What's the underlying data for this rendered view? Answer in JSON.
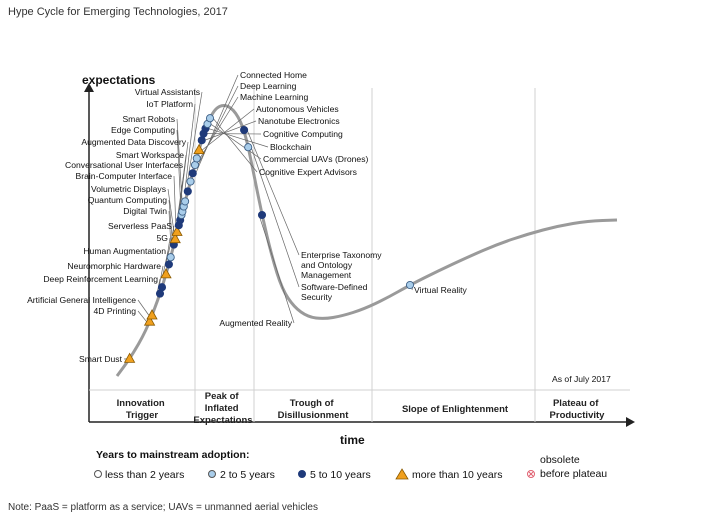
{
  "page": {
    "title": "Hype Cycle for Emerging Technologies, 2017",
    "note": "Note: PaaS = platform as a service; UAVs = unmanned aerial vehicles"
  },
  "chart_data": {
    "type": "hype-cycle",
    "title": "Hype Cycle for Emerging Technologies, 2017",
    "ylabel": "expectations",
    "xlabel": "time",
    "as_of": "As of July 2017",
    "phases": [
      [
        "Innovation",
        "Trigger"
      ],
      [
        "Peak of",
        "Inflated",
        "Expectations"
      ],
      [
        "Trough of",
        "Disillusionment"
      ],
      [
        "Slope of Enlightenment"
      ],
      [
        "Plateau of",
        "Productivity"
      ]
    ],
    "legend": {
      "title": "Years to mainstream adoption:",
      "items": [
        {
          "key": "lt2",
          "label": "less than 2 years"
        },
        {
          "key": "2to5",
          "label": "2 to 5 years"
        },
        {
          "key": "5to10",
          "label": "5 to 10 years"
        },
        {
          "key": "gt10",
          "label": "more than 10 years"
        },
        {
          "key": "obsolete",
          "label": [
            "obsolete",
            "before plateau"
          ]
        }
      ]
    },
    "colors": {
      "curve": "#9a9a9a",
      "lt2": "#ffffff",
      "2to5": "#a9cdea",
      "5to10": "#1f3a7a",
      "gt10": "#f0a01e",
      "obsolete": "#e06070",
      "divider": "#d0d0d0"
    },
    "technologies": [
      {
        "name": "Smart Dust",
        "category": "gt10",
        "pos": 0.9
      },
      {
        "name": "4D Printing",
        "category": "gt10",
        "pos": 2.3
      },
      {
        "name": "Artificial General Intelligence",
        "category": "gt10",
        "pos": 2.5
      },
      {
        "name": "Deep Reinforcement Learning",
        "category": "5to10",
        "pos": 3.2
      },
      {
        "name": "Neuromorphic Hardware",
        "category": "5to10",
        "pos": 3.4
      },
      {
        "name": "Human Augmentation",
        "category": "gt10",
        "pos": 3.8
      },
      {
        "name": "5G",
        "category": "5to10",
        "pos": 4.1
      },
      {
        "name": "Serverless PaaS",
        "category": "2to5",
        "pos": 4.3
      },
      {
        "name": "Digital Twin",
        "category": "5to10",
        "pos": 4.65
      },
      {
        "name": "Quantum Computing",
        "category": "gt10",
        "pos": 4.8
      },
      {
        "name": "Volumetric Displays",
        "category": "gt10",
        "pos": 5.0
      },
      {
        "name": "Brain-Computer Interface",
        "category": "5to10",
        "pos": 5.2
      },
      {
        "name": "Conversational User Interfaces",
        "category": "5to10",
        "pos": 5.35
      },
      {
        "name": "Smart Workspace",
        "category": "2to5",
        "pos": 5.5
      },
      {
        "name": "Augmented Data Discovery",
        "category": "2to5",
        "pos": 5.6
      },
      {
        "name": "Edge Computing",
        "category": "2to5",
        "pos": 5.75
      },
      {
        "name": "Smart Robots",
        "category": "2to5",
        "pos": 5.9
      },
      {
        "name": "IoT Platform",
        "category": "5to10",
        "pos": 6.2
      },
      {
        "name": "Virtual Assistants",
        "category": "2to5",
        "pos": 6.5
      },
      {
        "name": "Connected Home",
        "category": "5to10",
        "pos": 6.75
      },
      {
        "name": "Deep Learning",
        "category": "2to5",
        "pos": 7.0
      },
      {
        "name": "Machine Learning",
        "category": "2to5",
        "pos": 7.2
      },
      {
        "name": "Autonomous Vehicles",
        "category": "gt10",
        "pos": 7.45
      },
      {
        "name": "Nanotube Electronics",
        "category": "5to10",
        "pos": 7.75
      },
      {
        "name": "Cognitive Computing",
        "category": "5to10",
        "pos": 7.95
      },
      {
        "name": "Blockchain",
        "category": "5to10",
        "pos": 8.15
      },
      {
        "name": "Commercial UAVs (Drones)",
        "category": "2to5",
        "pos": 8.35
      },
      {
        "name": "Cognitive Expert Advisors",
        "category": "2to5",
        "pos": 8.6
      },
      {
        "name": "Enterprise Taxonomy and Ontology Management",
        "category": "5to10",
        "pos": 11.9
      },
      {
        "name": "Software-Defined Security",
        "category": "2to5",
        "pos": 12.4
      },
      {
        "name": "Augmented Reality",
        "category": "5to10",
        "pos": 14.0
      },
      {
        "name": "Virtual Reality",
        "category": "2to5",
        "pos": 23.0
      }
    ]
  }
}
